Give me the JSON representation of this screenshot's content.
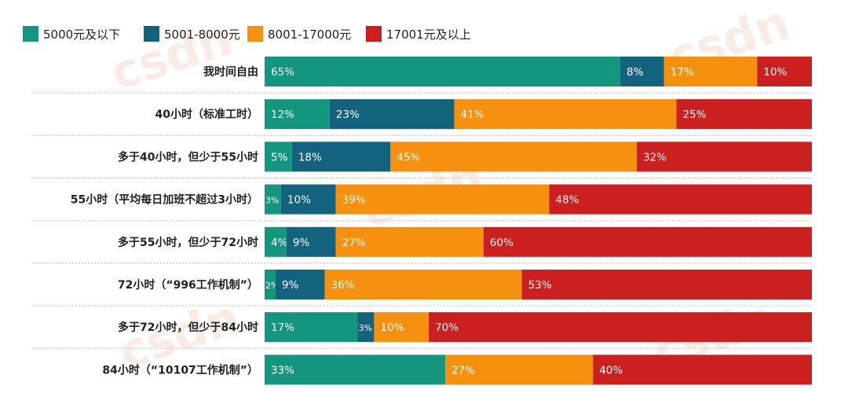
{
  "colors": [
    "#14957d",
    "#14637e",
    "#f5910f",
    "#cc1f1f"
  ],
  "watermark": "csdn",
  "chart_data": {
    "type": "bar",
    "orientation": "horizontal",
    "stacked": true,
    "percent_stacked": true,
    "legend_position": "top-left",
    "grid": false,
    "categories": [
      "我时间自由",
      "40小时（标准工时）",
      "多于40小时，但少于55小时",
      "55小时（平均每日加班不超过3小时）",
      "多于55小时，但少于72小时",
      "72小时（“996工作机制”）",
      "多于72小时，但少于84小时",
      "84小时（“10107工作机制”）"
    ],
    "series": [
      {
        "name": "5000元及以下",
        "values": [
          65,
          12,
          5,
          3,
          4,
          2,
          17,
          33
        ]
      },
      {
        "name": "5001-8000元",
        "values": [
          8,
          23,
          18,
          10,
          9,
          9,
          3,
          0
        ]
      },
      {
        "name": "8001-17000元",
        "values": [
          17,
          41,
          45,
          39,
          27,
          36,
          10,
          27
        ]
      },
      {
        "name": "17001元及以上",
        "values": [
          10,
          25,
          32,
          48,
          60,
          53,
          70,
          40
        ]
      }
    ],
    "value_suffix": "%"
  }
}
